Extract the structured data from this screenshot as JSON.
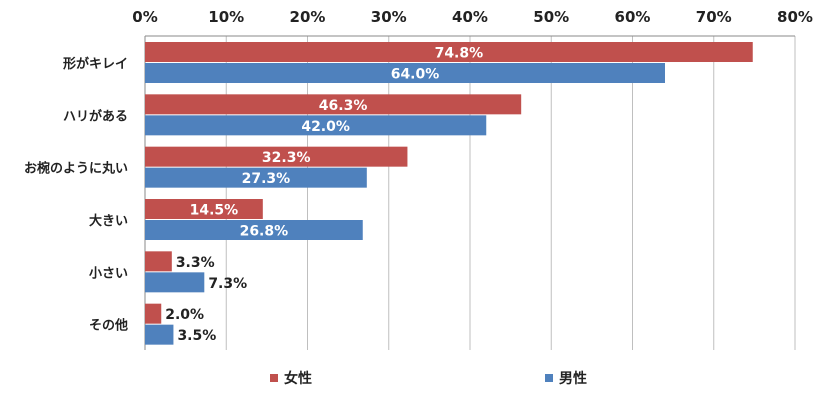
{
  "chart_data": {
    "type": "bar",
    "orientation": "horizontal",
    "categories": [
      "形がキレイ",
      "ハリがある",
      "お椀のように丸い",
      "大きい",
      "小さい",
      "その他"
    ],
    "series": [
      {
        "name": "女性",
        "color": "#C0504D",
        "values": [
          74.8,
          46.3,
          32.3,
          14.5,
          3.3,
          2.0
        ]
      },
      {
        "name": "男性",
        "color": "#4F81BD",
        "values": [
          64.0,
          42.0,
          27.3,
          26.8,
          7.3,
          3.5
        ]
      }
    ],
    "value_suffix": "%",
    "xlim": [
      0,
      80
    ],
    "xticks": [
      0,
      10,
      20,
      30,
      40,
      50,
      60,
      70,
      80
    ],
    "xtick_labels": [
      "0%",
      "10%",
      "20%",
      "30%",
      "40%",
      "50%",
      "60%",
      "70%",
      "80%"
    ],
    "grid": true,
    "axis_position": "top",
    "legend_position": "bottom",
    "title": "",
    "xlabel": "",
    "ylabel": ""
  }
}
